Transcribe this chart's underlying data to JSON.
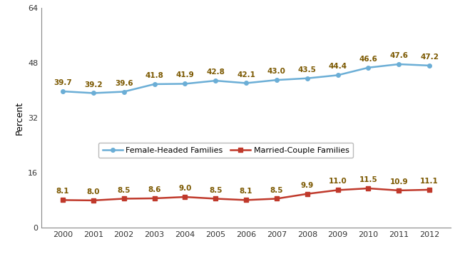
{
  "years": [
    2000,
    2001,
    2002,
    2003,
    2004,
    2005,
    2006,
    2007,
    2008,
    2009,
    2010,
    2011,
    2012
  ],
  "female_headed": [
    39.7,
    39.2,
    39.6,
    41.8,
    41.9,
    42.8,
    42.1,
    43.0,
    43.5,
    44.4,
    46.6,
    47.6,
    47.2
  ],
  "married_couple": [
    8.1,
    8.0,
    8.5,
    8.6,
    9.0,
    8.5,
    8.1,
    8.5,
    9.9,
    11.0,
    11.5,
    10.9,
    11.1
  ],
  "female_color": "#6baed6",
  "married_color": "#c0392b",
  "ylabel": "Percent",
  "ylim": [
    0,
    64
  ],
  "yticks": [
    0,
    16,
    32,
    48,
    64
  ],
  "legend_female": "Female-Headed Families",
  "legend_married": "Married-Couple Families",
  "background_color": "#ffffff",
  "annotation_fontsize": 7.5,
  "annotation_color": "#7B5800"
}
